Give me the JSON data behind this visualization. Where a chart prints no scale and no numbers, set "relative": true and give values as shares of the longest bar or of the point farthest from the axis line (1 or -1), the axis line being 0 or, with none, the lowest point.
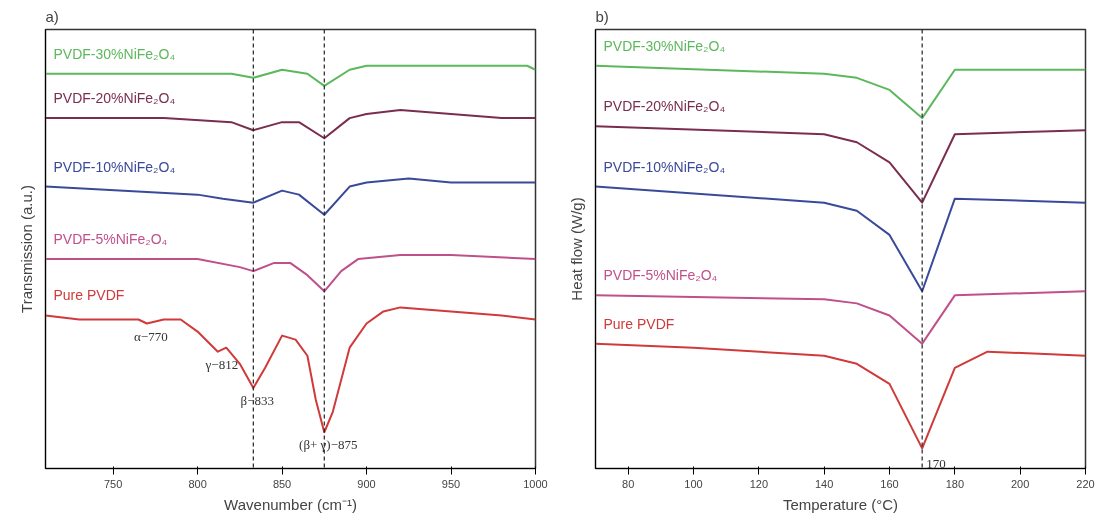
{
  "chart_data": [
    {
      "type": "line",
      "title": "a)",
      "xlabel": "Wavenumber (cm⁻¹)",
      "ylabel": "Transmission (a.u.)",
      "relative": true,
      "tick_labels": "x",
      "xlim": [
        710,
        1000
      ],
      "xticks": [
        750,
        800,
        850,
        900,
        950,
        1000
      ],
      "series": [
        {
          "name": "PVDF-30%NiFe₂O₄",
          "color": "#5cb85c",
          "x": [
            710,
            820,
            833,
            850,
            865,
            875,
            890,
            900,
            950,
            995,
            1000
          ],
          "values": [
            0.98,
            0.98,
            0.97,
            0.99,
            0.98,
            0.95,
            0.99,
            1.0,
            1.0,
            1.0,
            0.99
          ]
        },
        {
          "name": "PVDF-20%NiFe₂O₄",
          "color": "#7b2d4f",
          "x": [
            710,
            780,
            820,
            833,
            850,
            860,
            875,
            890,
            900,
            920,
            980,
            1000
          ],
          "values": [
            0.87,
            0.87,
            0.86,
            0.84,
            0.86,
            0.86,
            0.82,
            0.87,
            0.88,
            0.89,
            0.87,
            0.87
          ]
        },
        {
          "name": "PVDF-10%NiFe₂O₄",
          "color": "#3a4a9a",
          "x": [
            710,
            800,
            815,
            833,
            850,
            860,
            875,
            890,
            900,
            925,
            950,
            1000
          ],
          "values": [
            0.7,
            0.68,
            0.67,
            0.66,
            0.69,
            0.68,
            0.63,
            0.7,
            0.71,
            0.72,
            0.71,
            0.71
          ]
        },
        {
          "name": "PVDF-5%NiFe₂O₄",
          "color": "#c0508a",
          "x": [
            710,
            760,
            800,
            825,
            833,
            845,
            855,
            865,
            875,
            885,
            895,
            920,
            950,
            1000
          ],
          "values": [
            0.52,
            0.52,
            0.52,
            0.5,
            0.49,
            0.51,
            0.51,
            0.48,
            0.44,
            0.49,
            0.52,
            0.53,
            0.53,
            0.52
          ]
        },
        {
          "name": "Pure PVDF",
          "color": "#d03a3a",
          "x": [
            710,
            730,
            750,
            765,
            770,
            780,
            790,
            800,
            812,
            817,
            825,
            833,
            840,
            850,
            858,
            865,
            870,
            875,
            880,
            890,
            900,
            910,
            920,
            950,
            980,
            1000
          ],
          "values": [
            0.38,
            0.37,
            0.37,
            0.37,
            0.36,
            0.37,
            0.37,
            0.34,
            0.29,
            0.3,
            0.26,
            0.2,
            0.25,
            0.33,
            0.32,
            0.28,
            0.17,
            0.09,
            0.14,
            0.3,
            0.36,
            0.39,
            0.4,
            0.39,
            0.38,
            0.37
          ]
        }
      ],
      "ref_lines": [
        {
          "axis": "x",
          "value": 833,
          "line_style": "dashed",
          "color": "#222222"
        },
        {
          "axis": "x",
          "value": 875,
          "line_style": "dashed",
          "color": "#222222"
        }
      ],
      "annotations": [
        {
          "text": "α−770",
          "x": 770,
          "y": 0.36
        },
        {
          "text": "γ−812",
          "x": 812,
          "y": 0.29
        },
        {
          "text": "β−833",
          "x": 833,
          "y": 0.2
        },
        {
          "text": "(β+ γ)−875",
          "x": 875,
          "y": 0.09
        }
      ]
    },
    {
      "type": "line",
      "title": "b)",
      "xlabel": "Temperature (°C)",
      "ylabel": "Heat flow (W/g)",
      "relative": true,
      "tick_labels": "x",
      "xlim": [
        70,
        220
      ],
      "xticks": [
        80,
        100,
        120,
        140,
        160,
        180,
        200,
        220
      ],
      "series": [
        {
          "name": "PVDF-30%NiFe₂O₄",
          "color": "#5cb85c",
          "x": [
            70,
            140,
            150,
            160,
            170,
            180,
            220
          ],
          "values": [
            1.0,
            0.98,
            0.97,
            0.94,
            0.87,
            0.99,
            0.99
          ]
        },
        {
          "name": "PVDF-20%NiFe₂O₄",
          "color": "#7b2d4f",
          "x": [
            70,
            140,
            150,
            160,
            170,
            180,
            220
          ],
          "values": [
            0.85,
            0.83,
            0.81,
            0.76,
            0.66,
            0.83,
            0.84
          ]
        },
        {
          "name": "PVDF-10%NiFe₂O₄",
          "color": "#3a4a9a",
          "x": [
            70,
            140,
            150,
            160,
            170,
            180,
            220
          ],
          "values": [
            0.7,
            0.66,
            0.64,
            0.58,
            0.44,
            0.67,
            0.66
          ]
        },
        {
          "name": "PVDF-5%NiFe₂O₄",
          "color": "#c0508a",
          "x": [
            70,
            140,
            150,
            160,
            170,
            180,
            220
          ],
          "values": [
            0.43,
            0.42,
            0.41,
            0.38,
            0.31,
            0.43,
            0.44
          ]
        },
        {
          "name": "Pure PVDF",
          "color": "#d03a3a",
          "x": [
            70,
            100,
            140,
            150,
            160,
            170,
            180,
            190,
            220
          ],
          "values": [
            0.31,
            0.3,
            0.28,
            0.26,
            0.21,
            0.05,
            0.25,
            0.29,
            0.28
          ]
        }
      ],
      "ref_lines": [
        {
          "axis": "x",
          "value": 170,
          "line_style": "dashed",
          "color": "#222222"
        }
      ],
      "annotations": [
        {
          "text": "170",
          "x": 170,
          "y": 0.05
        }
      ]
    }
  ]
}
